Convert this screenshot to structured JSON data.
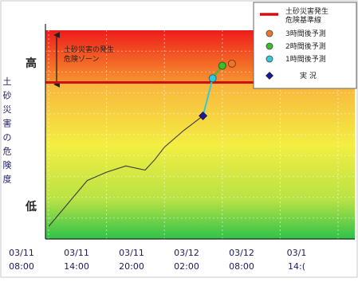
{
  "chart_data": {
    "type": "line",
    "ylabel": "土砂災害の危険度",
    "y_high_label": "高",
    "y_low_label": "低",
    "x_ticks": [
      {
        "date": "03/11",
        "time": "08:00"
      },
      {
        "date": "03/11",
        "time": "14:00"
      },
      {
        "date": "03/11",
        "time": "20:00"
      },
      {
        "date": "03/12",
        "time": "02:00"
      },
      {
        "date": "03/12",
        "time": "08:00"
      },
      {
        "date": "03/1",
        "time": "14:("
      }
    ],
    "zone_label": [
      "土砂災害の発生",
      "危険ゾーン"
    ],
    "ylim": [
      0,
      10
    ],
    "threshold": 7.5,
    "series": [
      {
        "name": "実 況",
        "points": [
          [
            "2024-03-11T08:00",
            0.6
          ],
          [
            "2024-03-11T10:00",
            1.7
          ],
          [
            "2024-03-11T12:00",
            2.8
          ],
          [
            "2024-03-11T14:00",
            3.2
          ],
          [
            "2024-03-11T16:00",
            3.5
          ],
          [
            "2024-03-11T18:00",
            3.3
          ],
          [
            "2024-03-11T19:00",
            3.8
          ],
          [
            "2024-03-11T20:00",
            4.4
          ],
          [
            "2024-03-11T22:00",
            5.2
          ],
          [
            "2024-03-12T00:00",
            5.9
          ]
        ]
      },
      {
        "name": "1時間後予測",
        "points": [
          [
            "2024-03-12T01:00",
            7.7
          ]
        ]
      },
      {
        "name": "2時間後予測",
        "points": [
          [
            "2024-03-12T02:00",
            8.3
          ]
        ]
      },
      {
        "name": "3時間後予測",
        "points": [
          [
            "2024-03-12T03:00",
            8.4
          ]
        ]
      }
    ],
    "legend": {
      "placement": "top-right",
      "entries": [
        {
          "label": [
            "土砂災害発生",
            "危険基準線"
          ],
          "type": "line",
          "color": "#d01010"
        },
        {
          "label": [
            "3時間後予測"
          ],
          "type": "marker",
          "color": "#e8762c"
        },
        {
          "label": [
            "2時間後予測"
          ],
          "type": "marker",
          "color": "#3bbd2e"
        },
        {
          "label": [
            "1時間後予測"
          ],
          "type": "marker",
          "color": "#35c8d8"
        },
        {
          "label": [
            "実 況"
          ],
          "type": "marker",
          "color": "#1a1a9e"
        }
      ]
    },
    "colors": {
      "threshold": "#d01010",
      "observed": "#1a1a9e",
      "h1": "#35c8d8",
      "h2": "#3bbd2e",
      "h3": "#e8762c",
      "axis_text": "#1a1a60"
    }
  }
}
